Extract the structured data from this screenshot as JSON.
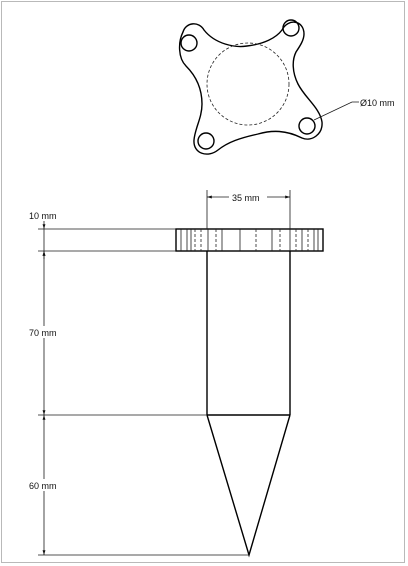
{
  "drawing": {
    "diameter_label": "Ø10 mm",
    "dimensions": {
      "flange_width": "35 mm",
      "flange_thickness": "10 mm",
      "shaft_length": "70 mm",
      "tip_length": "60 mm"
    }
  }
}
